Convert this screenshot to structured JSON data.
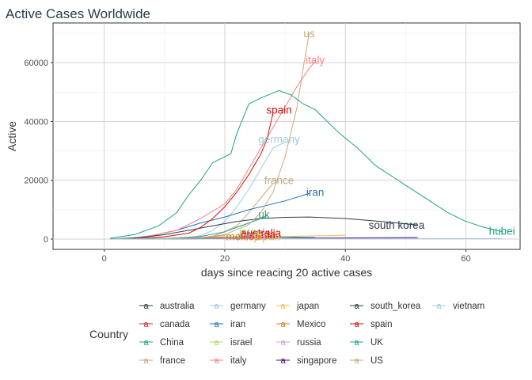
{
  "chart_data": {
    "type": "line",
    "title": "Active Cases Worldwide",
    "xlabel": "days since reacing 20 active cases",
    "ylabel": "Active",
    "xlim": [
      -8.5,
      69
    ],
    "ylim": [
      -3500,
      73500
    ],
    "x_ticks": [
      0,
      20,
      40,
      60
    ],
    "y_ticks": [
      0,
      20000,
      40000,
      60000
    ],
    "grid": true,
    "legend": {
      "title": "Country",
      "position": "bottom"
    },
    "series": [
      {
        "name": "australia",
        "color": "#2d3a4a",
        "points": [
          [
            1,
            20
          ],
          [
            10,
            50
          ],
          [
            20,
            150
          ],
          [
            26,
            400
          ],
          [
            29,
            800
          ]
        ]
      },
      {
        "name": "canada",
        "color": "#d62728",
        "points": [
          [
            1,
            20
          ],
          [
            10,
            40
          ],
          [
            20,
            200
          ],
          [
            25,
            600
          ],
          [
            28,
            1000
          ]
        ]
      },
      {
        "name": "China",
        "color": "#1ba384",
        "points": [
          [
            1,
            20
          ],
          [
            10,
            200
          ],
          [
            20,
            700
          ],
          [
            25,
            800
          ],
          [
            30,
            700
          ],
          [
            35,
            500
          ]
        ]
      },
      {
        "name": "france",
        "color": "#c2a878",
        "points": [
          [
            1,
            20
          ],
          [
            10,
            60
          ],
          [
            16,
            200
          ],
          [
            18,
            1000
          ],
          [
            20,
            2500
          ],
          [
            22,
            4500
          ],
          [
            24,
            9000
          ],
          [
            26,
            14000
          ],
          [
            28,
            19000
          ]
        ]
      },
      {
        "name": "germany",
        "color": "#9ecae1",
        "points": [
          [
            1,
            20
          ],
          [
            10,
            80
          ],
          [
            14,
            300
          ],
          [
            16,
            1200
          ],
          [
            18,
            3000
          ],
          [
            20,
            6000
          ],
          [
            22,
            11000
          ],
          [
            24,
            17000
          ],
          [
            26,
            24000
          ],
          [
            28,
            31000
          ],
          [
            30,
            33000
          ]
        ]
      },
      {
        "name": "iran",
        "color": "#2171b5",
        "points": [
          [
            1,
            20
          ],
          [
            4,
            200
          ],
          [
            8,
            1200
          ],
          [
            12,
            3000
          ],
          [
            16,
            5500
          ],
          [
            20,
            7500
          ],
          [
            24,
            10000
          ],
          [
            27,
            11500
          ],
          [
            30,
            13000
          ],
          [
            34,
            15500
          ]
        ]
      },
      {
        "name": "israel",
        "color": "#a6d96a",
        "points": [
          [
            1,
            20
          ],
          [
            10,
            50
          ],
          [
            20,
            300
          ],
          [
            25,
            800
          ],
          [
            29,
            1800
          ]
        ]
      },
      {
        "name": "italy",
        "color": "#f08080",
        "points": [
          [
            1,
            20
          ],
          [
            4,
            150
          ],
          [
            8,
            1200
          ],
          [
            12,
            3000
          ],
          [
            16,
            7000
          ],
          [
            20,
            12000
          ],
          [
            22,
            17000
          ],
          [
            24,
            24000
          ],
          [
            26,
            31000
          ],
          [
            28,
            38000
          ],
          [
            30,
            45000
          ],
          [
            32,
            52000
          ],
          [
            34,
            58000
          ],
          [
            35,
            60500
          ]
        ]
      },
      {
        "name": "japan",
        "color": "#f4b860",
        "points": [
          [
            1,
            20
          ],
          [
            10,
            200
          ],
          [
            20,
            500
          ],
          [
            30,
            900
          ],
          [
            40,
            1300
          ]
        ]
      },
      {
        "name": "Mexico",
        "color": "#e6750f",
        "points": [
          [
            1,
            20
          ],
          [
            10,
            60
          ],
          [
            16,
            300
          ],
          [
            20,
            700
          ]
        ]
      },
      {
        "name": "russia",
        "color": "#c8a2d8",
        "points": [
          [
            1,
            20
          ],
          [
            10,
            80
          ],
          [
            16,
            500
          ],
          [
            20,
            1200
          ]
        ]
      },
      {
        "name": "singapore",
        "color": "#4b0082",
        "points": [
          [
            1,
            20
          ],
          [
            10,
            60
          ],
          [
            20,
            150
          ],
          [
            30,
            300
          ],
          [
            40,
            400
          ],
          [
            52,
            500
          ]
        ]
      },
      {
        "name": "south_korea",
        "color": "#2d3a4a",
        "points": [
          [
            1,
            20
          ],
          [
            6,
            500
          ],
          [
            10,
            1500
          ],
          [
            14,
            3000
          ],
          [
            18,
            4500
          ],
          [
            22,
            6000
          ],
          [
            26,
            7000
          ],
          [
            30,
            7400
          ],
          [
            34,
            7500
          ],
          [
            40,
            7000
          ],
          [
            46,
            6000
          ],
          [
            52,
            4800
          ]
        ]
      },
      {
        "name": "spain",
        "color": "#cc1111",
        "points": [
          [
            1,
            20
          ],
          [
            6,
            200
          ],
          [
            10,
            800
          ],
          [
            14,
            2000
          ],
          [
            16,
            4000
          ],
          [
            18,
            7000
          ],
          [
            20,
            11000
          ],
          [
            22,
            16000
          ],
          [
            24,
            22000
          ],
          [
            26,
            29000
          ],
          [
            27,
            34000
          ],
          [
            28,
            43000
          ]
        ]
      },
      {
        "name": "UK",
        "color": "#1ba384",
        "points": [
          [
            1,
            20
          ],
          [
            10,
            200
          ],
          [
            16,
            900
          ],
          [
            20,
            2500
          ],
          [
            22,
            4000
          ],
          [
            24,
            5500
          ],
          [
            26,
            7000
          ],
          [
            27,
            8000
          ]
        ]
      },
      {
        "name": "US",
        "color": "#c9a87a",
        "points": [
          [
            1,
            20
          ],
          [
            10,
            100
          ],
          [
            16,
            500
          ],
          [
            20,
            1500
          ],
          [
            24,
            5000
          ],
          [
            26,
            9000
          ],
          [
            28,
            16000
          ],
          [
            30,
            28000
          ],
          [
            32,
            45000
          ],
          [
            33,
            58000
          ],
          [
            34,
            70000
          ]
        ]
      },
      {
        "name": "vietnam",
        "color": "#9ecae1",
        "points": [
          [
            1,
            20
          ],
          [
            10,
            30
          ],
          [
            20,
            80
          ],
          [
            30,
            150
          ],
          [
            45,
            200
          ],
          [
            66,
            200
          ]
        ]
      },
      {
        "name": "hubei",
        "color": "#1ba384",
        "points": [
          [
            1,
            300
          ],
          [
            5,
            1500
          ],
          [
            9,
            4500
          ],
          [
            12,
            9000
          ],
          [
            14,
            15000
          ],
          [
            16,
            20000
          ],
          [
            18,
            26000
          ],
          [
            21,
            29000
          ],
          [
            22,
            36000
          ],
          [
            23,
            41000
          ],
          [
            24,
            46000
          ],
          [
            26,
            48000
          ],
          [
            29,
            50500
          ],
          [
            31,
            49000
          ],
          [
            33,
            46000
          ],
          [
            35,
            44000
          ],
          [
            37,
            40000
          ],
          [
            39,
            36000
          ],
          [
            42,
            31000
          ],
          [
            45,
            25000
          ],
          [
            48,
            21000
          ],
          [
            51,
            17000
          ],
          [
            54,
            13000
          ],
          [
            57,
            9000
          ],
          [
            60,
            6000
          ],
          [
            63,
            4000
          ],
          [
            66,
            2500
          ]
        ]
      }
    ],
    "annotations": [
      {
        "text": "us",
        "x": 34,
        "y": 70000,
        "color": "#c2a878"
      },
      {
        "text": "italy",
        "x": 35,
        "y": 61000,
        "color": "#f08080"
      },
      {
        "text": "spain",
        "x": 29,
        "y": 44000,
        "color": "#cc1111"
      },
      {
        "text": "germany",
        "x": 29,
        "y": 34000,
        "color": "#9ecae1"
      },
      {
        "text": "france",
        "x": 29,
        "y": 20000,
        "color": "#c2a878"
      },
      {
        "text": "iran",
        "x": 35,
        "y": 16000,
        "color": "#2171b5"
      },
      {
        "text": "uk",
        "x": 26.5,
        "y": 8500,
        "color": "#1ba384"
      },
      {
        "text": "south korea",
        "x": 48.5,
        "y": 4800,
        "color": "#2d3a4a"
      },
      {
        "text": "hubei",
        "x": 66,
        "y": 2800,
        "color": "#1ba384"
      },
      {
        "text": "israel",
        "x": 24.5,
        "y": 2600,
        "color": "#a6d96a"
      },
      {
        "text": "australia",
        "x": 26,
        "y": 2200,
        "color": "#cc1111"
      },
      {
        "text": "canada",
        "x": 25.5,
        "y": 1600,
        "color": "#cc1111"
      },
      {
        "text": "russia",
        "x": 24.5,
        "y": 1200,
        "color": "#c8a2d8"
      },
      {
        "text": "mexico",
        "x": 23,
        "y": 1000,
        "color": "#e6750f"
      },
      {
        "text": "japan",
        "x": 27,
        "y": 900,
        "color": "#f4b860"
      }
    ],
    "legend_columns": [
      [
        "australia",
        "canada",
        "China",
        "france"
      ],
      [
        "germany",
        "iran",
        "israel",
        "italy"
      ],
      [
        "japan",
        "Mexico",
        "russia",
        "singapore"
      ],
      [
        "south_korea",
        "spain",
        "UK",
        "US"
      ],
      [
        "vietnam"
      ]
    ],
    "legend_key_glyph": "a"
  }
}
